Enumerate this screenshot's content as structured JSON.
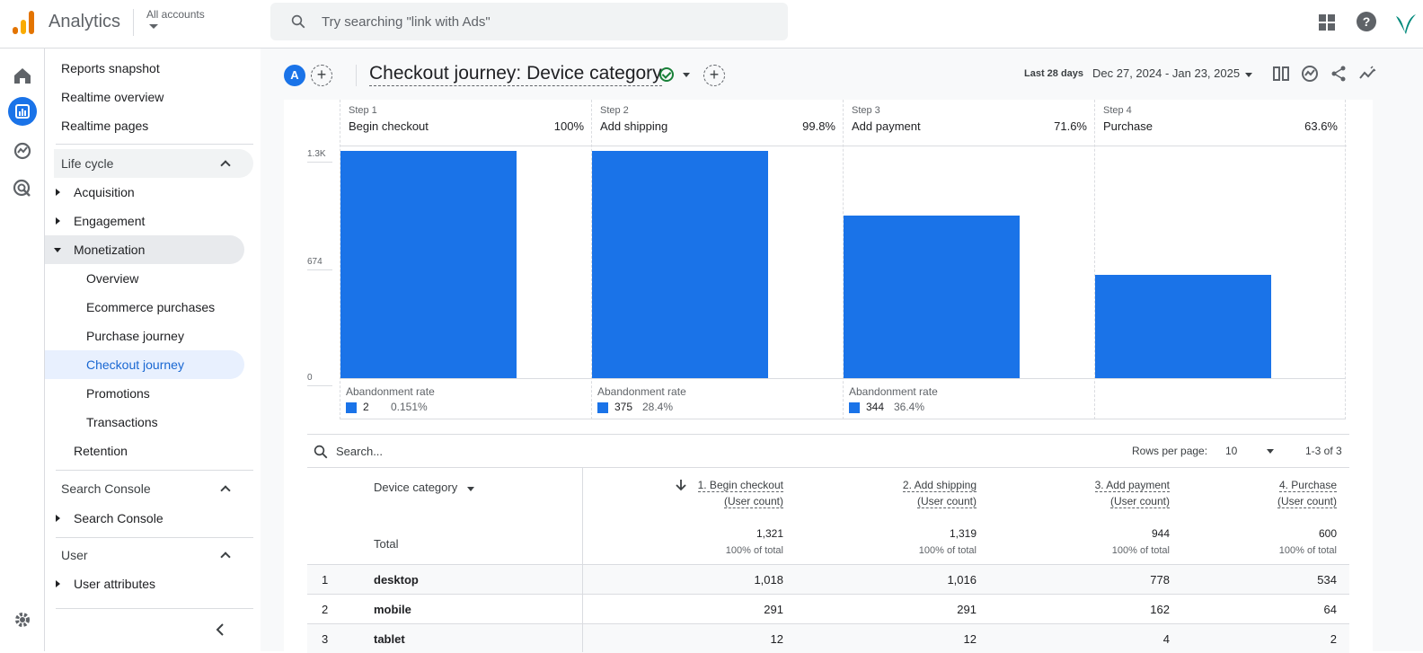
{
  "topbar": {
    "app_name": "Analytics",
    "accounts_label": "All accounts",
    "search_placeholder": "Try searching \"link with Ads\""
  },
  "nav": {
    "reports_snapshot": "Reports snapshot",
    "realtime_overview": "Realtime overview",
    "realtime_pages": "Realtime pages",
    "lifecycle": "Life cycle",
    "acquisition": "Acquisition",
    "engagement": "Engagement",
    "monetization": "Monetization",
    "overview": "Overview",
    "ecommerce_purchases": "Ecommerce purchases",
    "purchase_journey": "Purchase journey",
    "checkout_journey": "Checkout journey",
    "promotions": "Promotions",
    "transactions": "Transactions",
    "retention": "Retention",
    "search_console_section": "Search Console",
    "search_console_item": "Search Console",
    "user_section": "User",
    "user_attributes": "User attributes"
  },
  "header": {
    "avatar_letter": "A",
    "title": "Checkout journey: Device category",
    "date_label": "Last 28 days",
    "date_range": "Dec 27, 2024 - Jan 23, 2025"
  },
  "funnel": {
    "y_ticks": [
      "1.3K",
      "674",
      "0"
    ],
    "y_max": 1321,
    "steps": [
      {
        "step": "Step 1",
        "name": "Begin checkout",
        "pct": "100%",
        "value": 1321,
        "abandon_label": "Abandonment rate",
        "abandon_count": "2",
        "abandon_pct": "0.151%"
      },
      {
        "step": "Step 2",
        "name": "Add shipping",
        "pct": "99.8%",
        "value": 1319,
        "abandon_label": "Abandonment rate",
        "abandon_count": "375",
        "abandon_pct": "28.4%"
      },
      {
        "step": "Step 3",
        "name": "Add payment",
        "pct": "71.6%",
        "value": 944,
        "abandon_label": "Abandonment rate",
        "abandon_count": "344",
        "abandon_pct": "36.4%"
      },
      {
        "step": "Step 4",
        "name": "Purchase",
        "pct": "63.6%",
        "value": 600
      }
    ],
    "bar_color": "#1a73e8"
  },
  "table": {
    "search_placeholder": "Search...",
    "rows_per_page_label": "Rows per page:",
    "rows_per_page_value": "10",
    "pager": "1-3 of 3",
    "dim_header": "Device category",
    "metric_headers": [
      {
        "l1": "1. Begin checkout",
        "l2": "(User count)"
      },
      {
        "l1": "2. Add shipping",
        "l2": "(User count)"
      },
      {
        "l1": "3. Add payment",
        "l2": "(User count)"
      },
      {
        "l1": "4. Purchase",
        "l2": "(User count)"
      }
    ],
    "total_label": "Total",
    "totals": [
      "1,321",
      "1,319",
      "944",
      "600"
    ],
    "total_sub": "100% of total",
    "rows": [
      {
        "n": "1",
        "dim": "desktop",
        "vals": [
          "1,018",
          "1,016",
          "778",
          "534"
        ]
      },
      {
        "n": "2",
        "dim": "mobile",
        "vals": [
          "291",
          "291",
          "162",
          "64"
        ]
      },
      {
        "n": "3",
        "dim": "tablet",
        "vals": [
          "12",
          "12",
          "4",
          "2"
        ]
      }
    ]
  }
}
